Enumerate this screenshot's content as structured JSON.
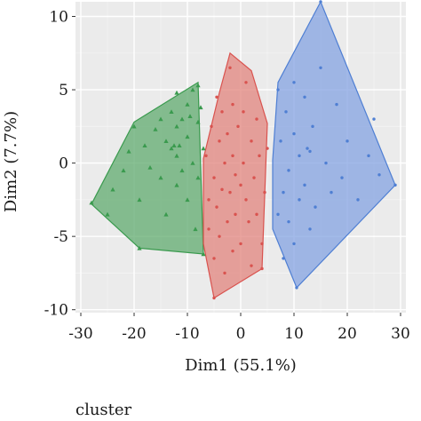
{
  "chart_data": {
    "type": "scatter",
    "title": "",
    "xlabel": "Dim1 (55.1%)",
    "ylabel": "Dim2 (7.7%)",
    "xlim": [
      -31,
      31
    ],
    "ylim": [
      -10.2,
      11
    ],
    "xticks": [
      -30,
      -20,
      -10,
      0,
      10,
      20,
      30
    ],
    "yticks": [
      -10,
      -5,
      0,
      5,
      10
    ],
    "grid": true,
    "legend": {
      "title": "cluster",
      "placement": "bottom"
    },
    "series": [
      {
        "color": "#3a9a4e",
        "fill": "#5aa86a",
        "marker": "triangle",
        "hull": [
          [
            -28,
            -2.8
          ],
          [
            -20,
            2.8
          ],
          [
            -8,
            5.5
          ],
          [
            -7,
            -6.2
          ],
          [
            -19,
            -5.8
          ]
        ],
        "points": [
          [
            -28,
            -2.7
          ],
          [
            -25,
            -3.5
          ],
          [
            -24,
            -1.8
          ],
          [
            -22,
            -0.5
          ],
          [
            -21,
            0.8
          ],
          [
            -20,
            2.5
          ],
          [
            -19,
            -5.8
          ],
          [
            -19,
            -2.5
          ],
          [
            -18,
            1.2
          ],
          [
            -17,
            -0.3
          ],
          [
            -16,
            2.3
          ],
          [
            -15,
            3.0
          ],
          [
            -15,
            -1.0
          ],
          [
            -14,
            1.5
          ],
          [
            -14,
            -3.5
          ],
          [
            -13,
            3.5
          ],
          [
            -13,
            1.0
          ],
          [
            -12.5,
            1.2
          ],
          [
            -12,
            4.8
          ],
          [
            -12,
            2.5
          ],
          [
            -12,
            0.5
          ],
          [
            -12,
            -1.5
          ],
          [
            -11.5,
            1.2
          ],
          [
            -11,
            3.0
          ],
          [
            -11,
            -0.5
          ],
          [
            -10,
            4.0
          ],
          [
            -10,
            1.8
          ],
          [
            -10,
            -2.5
          ],
          [
            -9.5,
            3.2
          ],
          [
            -9,
            5.0
          ],
          [
            -9,
            0.0
          ],
          [
            -8.5,
            -4.5
          ],
          [
            -8,
            5.3
          ],
          [
            -8,
            2.8
          ],
          [
            -8,
            -1.0
          ],
          [
            -7.5,
            3.8
          ],
          [
            -7,
            -6.2
          ],
          [
            -7,
            1.0
          ]
        ]
      },
      {
        "color": "#d9534f",
        "fill": "#e07f78",
        "marker": "circle",
        "hull": [
          [
            -4,
            4.8
          ],
          [
            -2,
            7.5
          ],
          [
            2,
            6.3
          ],
          [
            5,
            2.7
          ],
          [
            4,
            -7.2
          ],
          [
            -5,
            -9.2
          ],
          [
            -7,
            -5.5
          ],
          [
            -7,
            0.3
          ]
        ],
        "points": [
          [
            -6.5,
            0.5
          ],
          [
            -6,
            -2.5
          ],
          [
            -6,
            -4.5
          ],
          [
            -5.5,
            2.5
          ],
          [
            -5,
            -9.2
          ],
          [
            -5,
            -1.0
          ],
          [
            -5,
            -6.5
          ],
          [
            -4.5,
            4.5
          ],
          [
            -4.5,
            -3.0
          ],
          [
            -4,
            1.5
          ],
          [
            -4,
            -5.0
          ],
          [
            -3.5,
            3.5
          ],
          [
            -3.5,
            -1.8
          ],
          [
            -3,
            0.0
          ],
          [
            -3,
            -7.5
          ],
          [
            -2.5,
            2.0
          ],
          [
            -2.5,
            -4.0
          ],
          [
            -2,
            6.5
          ],
          [
            -2,
            -2.0
          ],
          [
            -1.5,
            4.0
          ],
          [
            -1.5,
            0.5
          ],
          [
            -1.5,
            -6.0
          ],
          [
            -1,
            -0.8
          ],
          [
            -1,
            -3.5
          ],
          [
            -0.5,
            2.5
          ],
          [
            0,
            -1.5
          ],
          [
            0,
            -5.5
          ],
          [
            0.5,
            3.5
          ],
          [
            0.5,
            0.0
          ],
          [
            1,
            -2.5
          ],
          [
            1,
            5.5
          ],
          [
            1.5,
            -4.0
          ],
          [
            2,
            1.5
          ],
          [
            2,
            -7.0
          ],
          [
            2.5,
            -1.0
          ],
          [
            3,
            3.0
          ],
          [
            3,
            -3.5
          ],
          [
            3.5,
            0.5
          ],
          [
            4,
            -5.5
          ],
          [
            4,
            -7.2
          ],
          [
            4.5,
            -2.0
          ],
          [
            5,
            1.0
          ]
        ]
      },
      {
        "color": "#4f7fd3",
        "fill": "#7f9fe0",
        "marker": "circle",
        "hull": [
          [
            7,
            5.5
          ],
          [
            15,
            11
          ],
          [
            29,
            -1.5
          ],
          [
            10.5,
            -8.5
          ],
          [
            6,
            -4.5
          ],
          [
            6,
            0.2
          ]
        ],
        "points": [
          [
            7,
            5.0
          ],
          [
            7,
            -3.5
          ],
          [
            7.5,
            1.5
          ],
          [
            8,
            -2.0
          ],
          [
            8,
            -6.5
          ],
          [
            8.5,
            3.5
          ],
          [
            9,
            -0.5
          ],
          [
            9,
            -4.0
          ],
          [
            10,
            5.5
          ],
          [
            10,
            2.0
          ],
          [
            10,
            -5.5
          ],
          [
            10.5,
            -8.5
          ],
          [
            11,
            0.5
          ],
          [
            11,
            -2.5
          ],
          [
            12,
            4.5
          ],
          [
            12,
            -1.5
          ],
          [
            12.5,
            1.0
          ],
          [
            13,
            0.8
          ],
          [
            13,
            -4.5
          ],
          [
            13.5,
            2.5
          ],
          [
            14,
            -3.0
          ],
          [
            15,
            11
          ],
          [
            15,
            6.5
          ],
          [
            16,
            0.0
          ],
          [
            17,
            -2.0
          ],
          [
            18,
            4.0
          ],
          [
            19,
            -1.0
          ],
          [
            20,
            1.5
          ],
          [
            22,
            -2.5
          ],
          [
            24,
            0.5
          ],
          [
            25,
            3.0
          ],
          [
            26,
            -0.8
          ],
          [
            29,
            -1.5
          ]
        ]
      }
    ]
  }
}
